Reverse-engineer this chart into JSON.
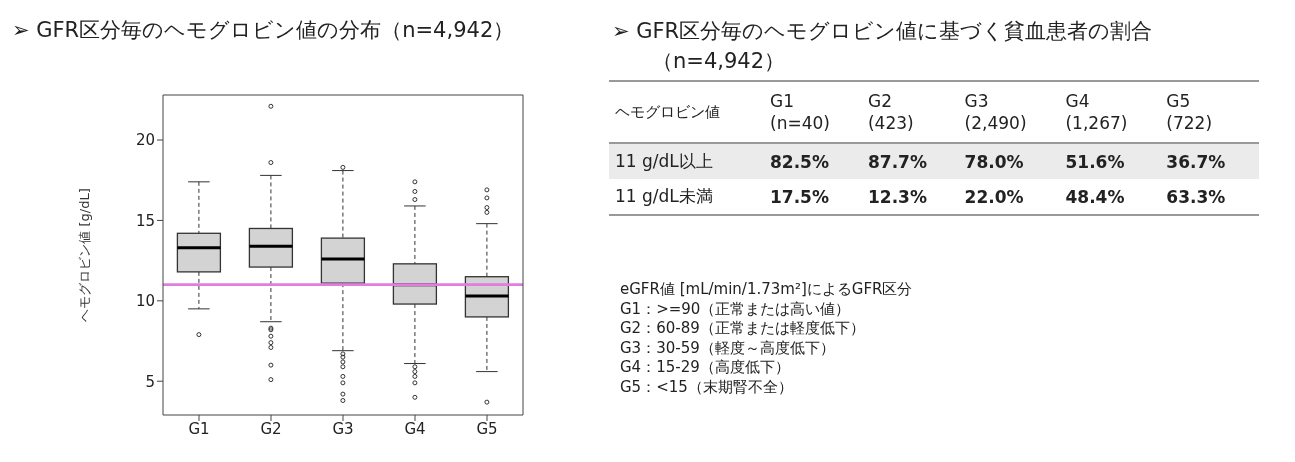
{
  "chart_data": [
    {
      "type": "box",
      "title": "➢ GFR区分毎のヘモグロビン値の分布（n=4,942）",
      "ylabel": "ヘモグロビン値 [g/dL]",
      "categories": [
        "G1",
        "G2",
        "G3",
        "G4",
        "G5"
      ],
      "color": "#d3d3d3",
      "ylim": [
        2.9,
        22.8
      ],
      "yticks": [
        5,
        10,
        15,
        20
      ],
      "boxes": [
        {
          "low": 9.5,
          "q1": 11.8,
          "median": 13.3,
          "q3": 14.2,
          "high": 17.4,
          "outliers": [
            7.9
          ]
        },
        {
          "low": 8.7,
          "q1": 12.1,
          "median": 13.4,
          "q3": 14.5,
          "high": 17.8,
          "outliers": [
            22.1,
            18.6,
            8.3,
            8.2,
            7.8,
            7.4,
            7.1,
            6.0,
            5.1
          ]
        },
        {
          "low": 6.9,
          "q1": 11.1,
          "median": 12.6,
          "q3": 13.9,
          "high": 18.1,
          "outliers": [
            18.3,
            6.7,
            6.5,
            6.2,
            5.9,
            5.3,
            4.9,
            4.2,
            3.8
          ]
        },
        {
          "low": 6.1,
          "q1": 9.8,
          "median": 11.0,
          "q3": 12.3,
          "high": 15.9,
          "outliers": [
            17.4,
            16.8,
            16.3,
            5.9,
            5.6,
            5.3,
            4.9,
            4.0
          ]
        },
        {
          "low": 5.6,
          "q1": 9.0,
          "median": 10.3,
          "q3": 11.5,
          "high": 14.8,
          "outliers": [
            16.9,
            16.4,
            15.8,
            15.5,
            3.7
          ]
        }
      ],
      "ref_lines": [
        {
          "axis": "y",
          "value": 11,
          "color": "#e07ee0"
        }
      ]
    },
    {
      "type": "other",
      "title": "➢ GFR区分毎のヘモグロビン値に基づく貧血患者の割合（n=4,942）",
      "legend_title": "ヘモグロビン値",
      "categories": [
        "G1\n(n=40)",
        "G2\n(423)",
        "G3\n(2,490)",
        "G4\n(1,267)",
        "G5\n(722)"
      ],
      "series": [
        {
          "name": "11 g/dL以上",
          "values": [
            82.5,
            87.7,
            78.0,
            51.6,
            36.7
          ],
          "value_labels": [
            "82.5%",
            "87.7%",
            "78.0%",
            "51.6%",
            "36.7%"
          ]
        },
        {
          "name": "11 g/dL未満",
          "values": [
            17.5,
            12.3,
            22.0,
            48.4,
            63.3
          ],
          "value_labels": [
            "17.5%",
            "12.3%",
            "22.0%",
            "48.4%",
            "63.3%"
          ]
        }
      ],
      "annotations": [
        "eGFR値 [mL/min/1.73m²]によるGFR区分",
        "G1：>=90（正常または高い値）",
        "G2：60-89（正常または軽度低下）",
        "G3：30-59（軽度～高度低下）",
        "G4：15-29（高度低下）",
        "G5：<15（末期腎不全）"
      ]
    }
  ]
}
